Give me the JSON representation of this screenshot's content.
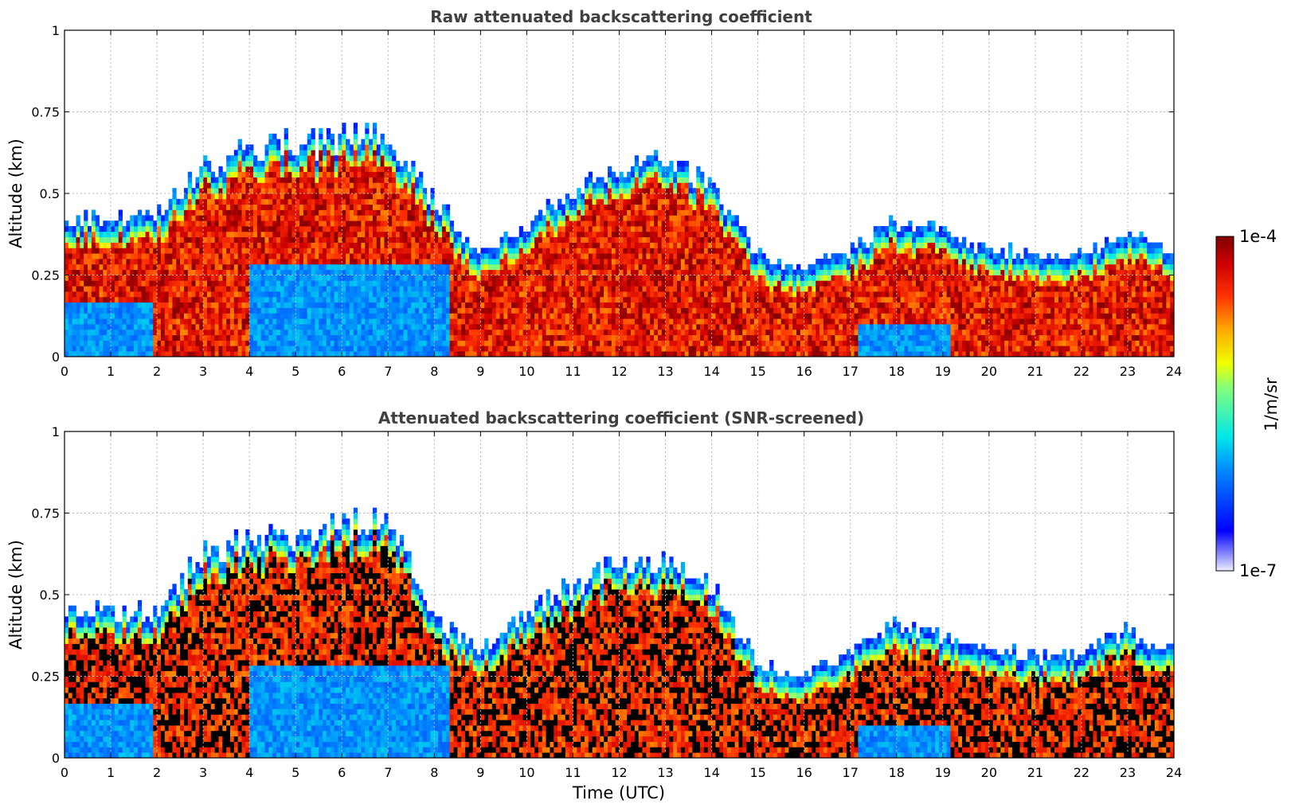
{
  "chart_data": [
    {
      "type": "heatmap",
      "title": "Raw attenuated backscattering coefficient",
      "xlabel": "",
      "ylabel": "Altitude (km)",
      "xlim": [
        0,
        24
      ],
      "ylim": [
        0,
        1
      ],
      "xticks": [
        "0",
        "1",
        "2",
        "3",
        "4",
        "5",
        "6",
        "7",
        "8",
        "9",
        "10",
        "11",
        "12",
        "13",
        "14",
        "15",
        "16",
        "17",
        "18",
        "19",
        "20",
        "21",
        "22",
        "23",
        "24"
      ],
      "yticks": [
        "0",
        "0.25",
        "0.5",
        "0.75",
        "1"
      ],
      "grid": true,
      "boundary_layer_top_km": {
        "x": [
          0,
          1,
          2,
          3,
          4,
          5,
          6,
          7,
          8,
          9,
          10,
          11,
          12,
          13,
          14,
          15,
          16,
          17,
          18,
          19,
          20,
          21,
          22,
          23,
          24
        ],
        "y": [
          0.4,
          0.4,
          0.4,
          0.55,
          0.6,
          0.62,
          0.63,
          0.65,
          0.45,
          0.28,
          0.38,
          0.48,
          0.55,
          0.58,
          0.5,
          0.28,
          0.24,
          0.3,
          0.38,
          0.35,
          0.3,
          0.28,
          0.28,
          0.34,
          0.3
        ]
      }
    },
    {
      "type": "heatmap",
      "title": "Attenuated backscattering coefficient (SNR-screened)",
      "xlabel": "Time (UTC)",
      "ylabel": "Altitude (km)",
      "xlim": [
        0,
        24
      ],
      "ylim": [
        0,
        1
      ],
      "xticks": [
        "0",
        "1",
        "2",
        "3",
        "4",
        "5",
        "6",
        "7",
        "8",
        "9",
        "10",
        "11",
        "12",
        "13",
        "14",
        "15",
        "16",
        "17",
        "18",
        "19",
        "20",
        "21",
        "22",
        "23",
        "24"
      ],
      "yticks": [
        "0",
        "0.25",
        "0.5",
        "0.75",
        "1"
      ],
      "grid": true,
      "boundary_layer_top_km": {
        "x": [
          0,
          1,
          2,
          3,
          4,
          5,
          6,
          7,
          8,
          9,
          10,
          11,
          12,
          13,
          14,
          15,
          16,
          17,
          18,
          19,
          20,
          21,
          22,
          23,
          24
        ],
        "y": [
          0.42,
          0.42,
          0.42,
          0.6,
          0.63,
          0.66,
          0.68,
          0.72,
          0.4,
          0.3,
          0.42,
          0.5,
          0.56,
          0.58,
          0.5,
          0.26,
          0.22,
          0.3,
          0.38,
          0.34,
          0.3,
          0.28,
          0.28,
          0.36,
          0.3
        ]
      }
    }
  ],
  "colorbar": {
    "max_label": "1e-4",
    "min_label": "1e-7",
    "unit": "1/m/sr",
    "colormap": "jet"
  }
}
